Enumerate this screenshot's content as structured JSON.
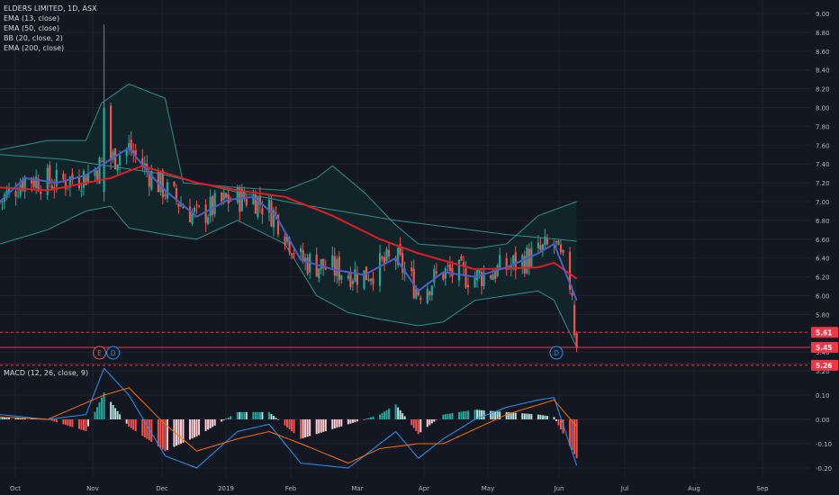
{
  "header": {
    "symbol": "ELDERS LIMITED, 1D, ASX",
    "indicators": [
      "EMA (13, close)",
      "EMA (50, close)",
      "BB (20, close, 2)",
      "EMA (200, close)"
    ],
    "macd_label": "MACD (12, 26, close, 9)"
  },
  "colors": {
    "background": "#131722",
    "grid": "#1f2331",
    "up": "#26a69a",
    "down": "#ef5350",
    "ema13": "#4a5fc1",
    "ema50": "#e51c23",
    "ema200": "#2f8f87",
    "bb": "#2f8f87",
    "bb_fill": "#12262a",
    "macd_line": "#2196f3",
    "signal_line": "#ff6d00",
    "price_label": "#f23645"
  },
  "price_axis": {
    "ticks": [
      "9.00",
      "8.80",
      "8.60",
      "8.40",
      "8.20",
      "8.00",
      "7.80",
      "7.60",
      "7.40",
      "7.20",
      "7.00",
      "6.80",
      "6.60",
      "6.40",
      "6.20",
      "6.00",
      "5.80",
      "5.40",
      "5.20"
    ],
    "labels": [
      {
        "text": "5.61",
        "value": 5.61,
        "style": "dashed"
      },
      {
        "text": "5.45",
        "value": 5.45,
        "style": "solid"
      },
      {
        "text": "5.26",
        "value": 5.26,
        "style": "dashed"
      }
    ]
  },
  "macd_axis": {
    "ticks": [
      "0.10",
      "0.00",
      "-0.10",
      "-0.20"
    ]
  },
  "time_axis": {
    "ticks": [
      "Oct",
      "Nov",
      "Dec",
      "2019",
      "Feb",
      "Mar",
      "Apr",
      "May",
      "Jun",
      "Jul",
      "Aug",
      "Sep"
    ]
  },
  "events": [
    {
      "label": "E",
      "date": "2018-11-07",
      "kind": "earnings"
    },
    {
      "label": "D",
      "date": "2018-11-13",
      "kind": "dividend"
    },
    {
      "label": "D",
      "date": "2019-05-28",
      "kind": "dividend"
    }
  ],
  "chart_data": {
    "type": "candlestick",
    "title": "ELDERS LIMITED, 1D, ASX",
    "x_range": [
      "2018-09-24",
      "2019-09-30"
    ],
    "ylim": [
      5.15,
      9.05
    ],
    "series": [
      {
        "name": "EMA (13, close)",
        "points": [
          [
            "2018-09-24",
            7.0
          ],
          [
            "2018-10-05",
            7.25
          ],
          [
            "2018-10-19",
            7.2
          ],
          [
            "2018-11-01",
            7.28
          ],
          [
            "2018-11-12",
            7.45
          ],
          [
            "2018-11-20",
            7.57
          ],
          [
            "2018-11-29",
            7.3
          ],
          [
            "2018-12-06",
            7.12
          ],
          [
            "2018-12-20",
            6.84
          ],
          [
            "2019-01-03",
            7.02
          ],
          [
            "2019-01-14",
            7.05
          ],
          [
            "2019-01-24",
            6.85
          ],
          [
            "2019-02-04",
            6.38
          ],
          [
            "2019-02-18",
            6.28
          ],
          [
            "2019-03-04",
            6.22
          ],
          [
            "2019-03-18",
            6.4
          ],
          [
            "2019-03-28",
            6.05
          ],
          [
            "2019-04-08",
            6.25
          ],
          [
            "2019-04-22",
            6.2
          ],
          [
            "2019-05-06",
            6.3
          ],
          [
            "2019-05-20",
            6.45
          ],
          [
            "2019-05-27",
            6.55
          ],
          [
            "2019-06-06",
            5.95
          ]
        ]
      },
      {
        "name": "EMA (50, close)",
        "points": [
          [
            "2018-09-24",
            7.15
          ],
          [
            "2018-10-15",
            7.12
          ],
          [
            "2018-11-12",
            7.25
          ],
          [
            "2018-11-26",
            7.38
          ],
          [
            "2018-12-20",
            7.2
          ],
          [
            "2019-01-07",
            7.12
          ],
          [
            "2019-01-28",
            7.05
          ],
          [
            "2019-02-18",
            6.85
          ],
          [
            "2019-03-11",
            6.6
          ],
          [
            "2019-03-28",
            6.45
          ],
          [
            "2019-04-22",
            6.28
          ],
          [
            "2019-05-20",
            6.3
          ],
          [
            "2019-05-27",
            6.35
          ],
          [
            "2019-06-06",
            6.18
          ]
        ]
      },
      {
        "name": "EMA (200, close)",
        "points": [
          [
            "2018-09-24",
            7.5
          ],
          [
            "2018-10-22",
            7.45
          ],
          [
            "2018-12-03",
            7.3
          ],
          [
            "2019-01-07",
            7.1
          ],
          [
            "2019-02-04",
            6.97
          ],
          [
            "2019-03-18",
            6.8
          ],
          [
            "2019-05-06",
            6.65
          ],
          [
            "2019-06-06",
            6.58
          ]
        ]
      },
      {
        "name": "BB (20, close, 2) upper",
        "points": [
          [
            "2018-09-24",
            7.55
          ],
          [
            "2018-10-15",
            7.65
          ],
          [
            "2018-11-01",
            7.65
          ],
          [
            "2018-11-08",
            8.05
          ],
          [
            "2018-11-20",
            8.25
          ],
          [
            "2018-12-06",
            8.1
          ],
          [
            "2018-12-14",
            7.2
          ],
          [
            "2019-01-07",
            7.15
          ],
          [
            "2019-01-28",
            7.12
          ],
          [
            "2019-02-11",
            7.25
          ],
          [
            "2019-02-18",
            7.38
          ],
          [
            "2019-03-04",
            7.1
          ],
          [
            "2019-03-18",
            6.75
          ],
          [
            "2019-03-28",
            6.55
          ],
          [
            "2019-04-22",
            6.5
          ],
          [
            "2019-05-06",
            6.55
          ],
          [
            "2019-05-20",
            6.85
          ],
          [
            "2019-06-06",
            7.0
          ]
        ]
      },
      {
        "name": "BB (20, close, 2) lower",
        "points": [
          [
            "2018-09-24",
            6.55
          ],
          [
            "2018-10-15",
            6.7
          ],
          [
            "2018-11-01",
            6.9
          ],
          [
            "2018-11-12",
            6.95
          ],
          [
            "2018-11-20",
            6.72
          ],
          [
            "2018-12-06",
            6.65
          ],
          [
            "2018-12-20",
            6.6
          ],
          [
            "2019-01-07",
            6.8
          ],
          [
            "2019-01-28",
            6.55
          ],
          [
            "2019-02-11",
            6.0
          ],
          [
            "2019-02-25",
            5.82
          ],
          [
            "2019-03-11",
            5.75
          ],
          [
            "2019-03-28",
            5.68
          ],
          [
            "2019-04-08",
            5.72
          ],
          [
            "2019-04-22",
            5.95
          ],
          [
            "2019-05-06",
            6.0
          ],
          [
            "2019-05-20",
            6.05
          ],
          [
            "2019-05-27",
            5.95
          ],
          [
            "2019-06-06",
            5.45
          ]
        ]
      },
      {
        "name": "MACD (12, 26, close, 9) macd",
        "points": [
          [
            "2018-09-24",
            0.02
          ],
          [
            "2018-10-15",
            0.0
          ],
          [
            "2018-11-01",
            0.02
          ],
          [
            "2018-11-09",
            0.21
          ],
          [
            "2018-11-20",
            0.1
          ],
          [
            "2018-12-06",
            -0.15
          ],
          [
            "2018-12-20",
            -0.2
          ],
          [
            "2019-01-07",
            -0.05
          ],
          [
            "2019-01-21",
            -0.02
          ],
          [
            "2019-02-04",
            -0.18
          ],
          [
            "2019-02-25",
            -0.2
          ],
          [
            "2019-03-11",
            -0.1
          ],
          [
            "2019-03-18",
            -0.05
          ],
          [
            "2019-03-28",
            -0.16
          ],
          [
            "2019-04-08",
            -0.08
          ],
          [
            "2019-04-22",
            0.0
          ],
          [
            "2019-05-06",
            0.05
          ],
          [
            "2019-05-20",
            0.08
          ],
          [
            "2019-05-27",
            0.09
          ],
          [
            "2019-06-06",
            -0.19
          ]
        ]
      },
      {
        "name": "MACD (12, 26, close, 9) signal",
        "points": [
          [
            "2018-09-24",
            0.01
          ],
          [
            "2018-10-15",
            0.0
          ],
          [
            "2018-11-09",
            0.1
          ],
          [
            "2018-11-20",
            0.13
          ],
          [
            "2018-12-06",
            -0.02
          ],
          [
            "2018-12-20",
            -0.13
          ],
          [
            "2019-01-07",
            -0.08
          ],
          [
            "2019-01-21",
            -0.05
          ],
          [
            "2019-02-04",
            -0.1
          ],
          [
            "2019-02-25",
            -0.18
          ],
          [
            "2019-03-11",
            -0.12
          ],
          [
            "2019-03-28",
            -0.1
          ],
          [
            "2019-04-08",
            -0.1
          ],
          [
            "2019-04-22",
            -0.04
          ],
          [
            "2019-05-06",
            0.02
          ],
          [
            "2019-05-20",
            0.06
          ],
          [
            "2019-05-27",
            0.08
          ],
          [
            "2019-06-06",
            -0.03
          ]
        ]
      }
    ],
    "highlights": [
      {
        "label": "high",
        "date": "2018-11-09",
        "value": 8.88
      },
      {
        "label": "last close",
        "date": "2019-06-06",
        "value": 5.45
      }
    ],
    "grid": true
  }
}
